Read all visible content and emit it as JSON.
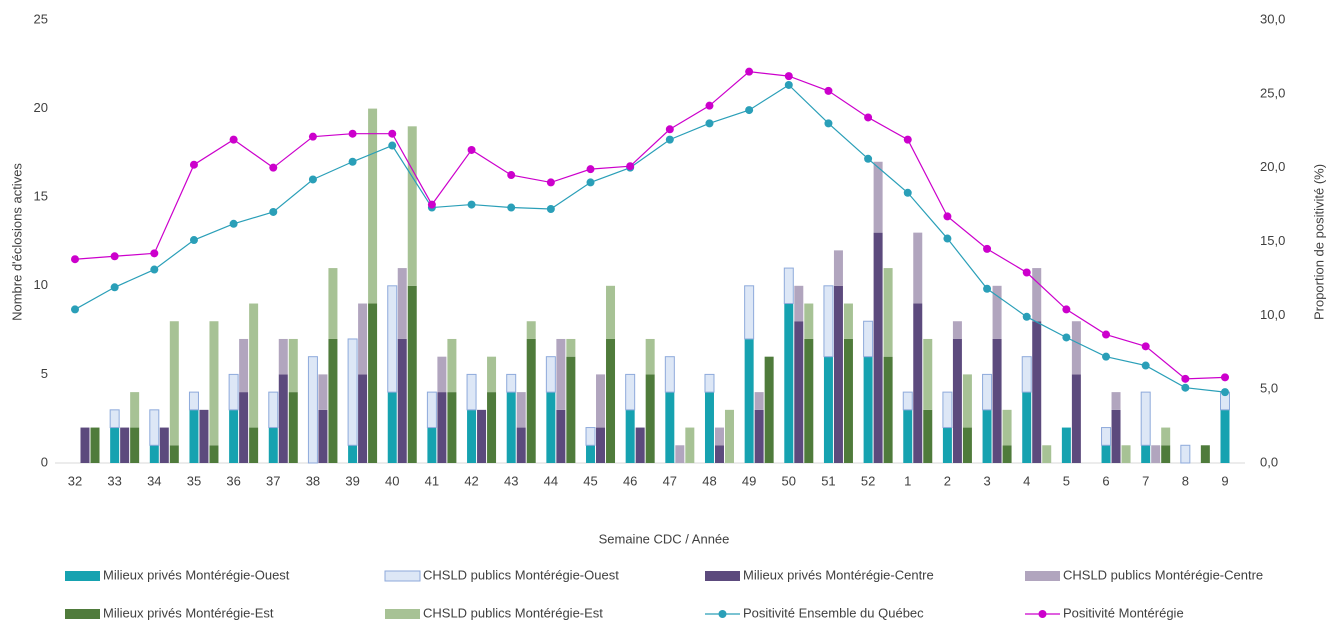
{
  "chart_data": {
    "type": "bar",
    "xlabel": "Semaine CDC / Année",
    "ylabel": "Nombre d'éclosions actives",
    "y2label": "Proportion de positivité (%)",
    "categories": [
      "32",
      "33",
      "34",
      "35",
      "36",
      "37",
      "38",
      "39",
      "40",
      "41",
      "42",
      "43",
      "44",
      "45",
      "46",
      "47",
      "48",
      "49",
      "50",
      "51",
      "52",
      "1",
      "2",
      "3",
      "4",
      "5",
      "6",
      "7",
      "8",
      "9"
    ],
    "ylim": [
      0,
      25
    ],
    "yticks": [
      0,
      5,
      10,
      15,
      20,
      25
    ],
    "y2lim": [
      0,
      30
    ],
    "y2ticks": [
      {
        "value": 0,
        "label": "0,0"
      },
      {
        "value": 5,
        "label": "5,0"
      },
      {
        "value": 10,
        "label": "10,0"
      },
      {
        "value": 15,
        "label": "15,0"
      },
      {
        "value": 20,
        "label": "20,0"
      },
      {
        "value": 25,
        "label": "25,0"
      },
      {
        "value": 30,
        "label": "30,0"
      }
    ],
    "series": [
      {
        "name": "Milieux privés Montérégie-Ouest",
        "type": "bar",
        "color": "#16a2b0",
        "values": [
          0,
          2,
          1,
          3,
          3,
          2,
          0,
          1,
          4,
          2,
          3,
          4,
          4,
          1,
          3,
          4,
          4,
          7,
          9,
          6,
          6,
          3,
          2,
          3,
          4,
          2,
          1,
          1,
          0,
          3
        ]
      },
      {
        "name": "CHSLD publics Montérégie-Ouest",
        "type": "bar",
        "color": "#dde7f6",
        "edgecolor": "#8eaadb",
        "values": [
          0,
          1,
          2,
          1,
          2,
          2,
          6,
          6,
          6,
          2,
          2,
          1,
          2,
          1,
          2,
          2,
          1,
          3,
          2,
          4,
          2,
          1,
          2,
          2,
          2,
          0,
          1,
          3,
          1,
          1
        ]
      },
      {
        "name": "Milieux privés  Montérégie-Centre",
        "type": "bar",
        "color": "#5c4a7d",
        "values": [
          2,
          2,
          2,
          3,
          4,
          5,
          3,
          5,
          7,
          4,
          3,
          2,
          3,
          2,
          2,
          0,
          1,
          3,
          8,
          10,
          13,
          9,
          7,
          7,
          8,
          5,
          3,
          0,
          0,
          0
        ]
      },
      {
        "name": "CHSLD publics Montérégie-Centre",
        "type": "bar",
        "color": "#b1a5be",
        "values": [
          0,
          0,
          0,
          0,
          3,
          2,
          2,
          4,
          4,
          2,
          0,
          2,
          4,
          3,
          0,
          1,
          1,
          1,
          2,
          2,
          4,
          4,
          1,
          3,
          3,
          3,
          1,
          1,
          0,
          0
        ]
      },
      {
        "name": "Milieux privés Montérégie-Est",
        "type": "bar",
        "color": "#4f7b3b",
        "values": [
          2,
          2,
          1,
          1,
          2,
          4,
          7,
          9,
          10,
          4,
          4,
          7,
          6,
          7,
          5,
          0,
          0,
          6,
          7,
          7,
          6,
          3,
          2,
          1,
          0,
          0,
          0,
          1,
          1,
          0
        ]
      },
      {
        "name": "CHSLD publics Montérégie-Est",
        "type": "bar",
        "color": "#a7c295",
        "values": [
          0,
          2,
          7,
          7,
          7,
          3,
          4,
          11,
          9,
          3,
          2,
          1,
          1,
          3,
          2,
          2,
          3,
          0,
          2,
          2,
          5,
          4,
          3,
          2,
          1,
          0,
          1,
          1,
          0,
          0
        ]
      },
      {
        "name": "Positivité Ensemble du Québec",
        "type": "line",
        "axis": "y2",
        "color": "#2a9fb8",
        "values": [
          10.4,
          11.9,
          13.1,
          15.1,
          16.2,
          17.0,
          19.2,
          20.4,
          21.5,
          17.3,
          17.5,
          17.3,
          17.2,
          19.0,
          20.0,
          21.9,
          23.0,
          23.9,
          25.6,
          23.0,
          20.6,
          18.3,
          15.2,
          11.8,
          9.9,
          8.5,
          7.2,
          6.6,
          5.1,
          4.8
        ]
      },
      {
        "name": "Positivité Montérégie",
        "type": "line",
        "axis": "y2",
        "color": "#cc00cc",
        "values": [
          13.8,
          14.0,
          14.2,
          20.2,
          21.9,
          20.0,
          22.1,
          22.3,
          22.3,
          17.5,
          21.2,
          19.5,
          19.0,
          19.9,
          20.1,
          22.6,
          24.2,
          26.5,
          26.2,
          25.2,
          23.4,
          21.9,
          16.7,
          14.5,
          12.9,
          10.4,
          8.7,
          7.9,
          5.7,
          5.8
        ]
      }
    ]
  }
}
